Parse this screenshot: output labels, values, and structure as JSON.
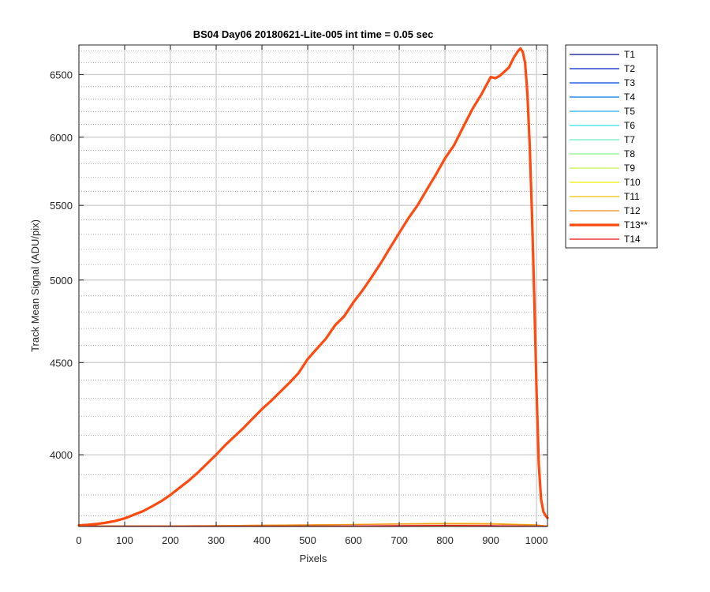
{
  "chart_data": {
    "type": "line",
    "title": "BS04 Day06 20180621-Lite-005 int time = 0.05 sec",
    "xlabel": "Pixels",
    "ylabel": "Track Mean Signal (ADU/pix)",
    "xlim": [
      0,
      1024
    ],
    "ylim": [
      3650,
      6750
    ],
    "y_scale": "log",
    "grid": true,
    "minor_grid": true,
    "legend_position": "outside-top-right",
    "x_ticks": [
      0,
      100,
      200,
      300,
      400,
      500,
      600,
      700,
      800,
      900,
      1000
    ],
    "y_ticks": [
      4000,
      4500,
      5000,
      5500,
      6000,
      6500
    ],
    "y_minor_ticks": [
      3700,
      3800,
      3900,
      4100,
      4200,
      4300,
      4400,
      4600,
      4700,
      4800,
      4900,
      5100,
      5200,
      5300,
      5400,
      5600,
      5700,
      5800,
      5900,
      6100,
      6200,
      6300,
      6400,
      6600,
      6700
    ],
    "series": [
      {
        "name": "T1",
        "color": "#000c8c",
        "width": 1.2,
        "x": [
          0,
          1024
        ],
        "y": [
          3640,
          3640
        ]
      },
      {
        "name": "T2",
        "color": "#0020c8",
        "width": 1.2,
        "x": [
          0,
          1024
        ],
        "y": [
          3640,
          3640
        ]
      },
      {
        "name": "T3",
        "color": "#0044e0",
        "width": 1.2,
        "x": [
          0,
          1024
        ],
        "y": [
          3640,
          3640
        ]
      },
      {
        "name": "T4",
        "color": "#0078e8",
        "width": 1.2,
        "x": [
          0,
          1024
        ],
        "y": [
          3640,
          3640
        ]
      },
      {
        "name": "T5",
        "color": "#20acec",
        "width": 1.2,
        "x": [
          0,
          1024
        ],
        "y": [
          3640,
          3640
        ]
      },
      {
        "name": "T6",
        "color": "#30e0e8",
        "width": 1.2,
        "x": [
          0,
          1024
        ],
        "y": [
          3640,
          3640
        ]
      },
      {
        "name": "T7",
        "color": "#70ecc8",
        "width": 1.2,
        "x": [
          0,
          1024
        ],
        "y": [
          3640,
          3640
        ]
      },
      {
        "name": "T8",
        "color": "#90f090",
        "width": 1.2,
        "x": [
          0,
          1024
        ],
        "y": [
          3640,
          3640
        ]
      },
      {
        "name": "T9",
        "color": "#c8f048",
        "width": 1.2,
        "x": [
          0,
          1024
        ],
        "y": [
          3640,
          3640
        ]
      },
      {
        "name": "T10",
        "color": "#f0f000",
        "width": 1.2,
        "x": [
          0,
          1024
        ],
        "y": [
          3640,
          3640
        ]
      },
      {
        "name": "T11",
        "color": "#f0c000",
        "width": 1.2,
        "x": [
          0,
          200,
          400,
          600,
          700,
          800,
          900,
          1000,
          1024
        ],
        "y": [
          3650,
          3652,
          3656,
          3660,
          3663,
          3665,
          3664,
          3658,
          3652
        ]
      },
      {
        "name": "T12",
        "color": "#f09020",
        "width": 1.2,
        "x": [
          0,
          200,
          400,
          600,
          700,
          800,
          900,
          1000,
          1024
        ],
        "y": [
          3652,
          3653,
          3656,
          3659,
          3661,
          3662,
          3661,
          3657,
          3652
        ]
      },
      {
        "name": "T13**",
        "color": "#ff4a10",
        "width": 3.2,
        "x": [
          0,
          20,
          40,
          60,
          80,
          100,
          120,
          140,
          160,
          180,
          200,
          220,
          240,
          260,
          280,
          300,
          320,
          340,
          360,
          380,
          400,
          420,
          440,
          460,
          480,
          500,
          520,
          540,
          560,
          580,
          600,
          620,
          640,
          660,
          680,
          700,
          720,
          740,
          760,
          780,
          800,
          820,
          840,
          860,
          880,
          900,
          910,
          920,
          940,
          950,
          960,
          965,
          970,
          975,
          980,
          985,
          990,
          995,
          1000,
          1005,
          1010,
          1015,
          1020,
          1024
        ],
        "y": [
          3655,
          3658,
          3662,
          3668,
          3676,
          3688,
          3705,
          3722,
          3745,
          3770,
          3800,
          3835,
          3870,
          3910,
          3955,
          4000,
          4050,
          4095,
          4140,
          4190,
          4240,
          4285,
          4335,
          4385,
          4440,
          4520,
          4580,
          4640,
          4720,
          4775,
          4860,
          4935,
          5020,
          5110,
          5210,
          5310,
          5410,
          5500,
          5610,
          5720,
          5840,
          5940,
          6080,
          6220,
          6340,
          6480,
          6470,
          6490,
          6560,
          6640,
          6700,
          6720,
          6690,
          6600,
          6350,
          5950,
          5450,
          4900,
          4350,
          3950,
          3780,
          3720,
          3700,
          3690
        ]
      },
      {
        "name": "T14",
        "color": "#e81010",
        "width": 1.2,
        "x": [
          0,
          200,
          400,
          600,
          700,
          800,
          900,
          1000,
          1024
        ],
        "y": [
          3648,
          3649,
          3651,
          3653,
          3654,
          3655,
          3654,
          3652,
          3649
        ]
      }
    ]
  }
}
